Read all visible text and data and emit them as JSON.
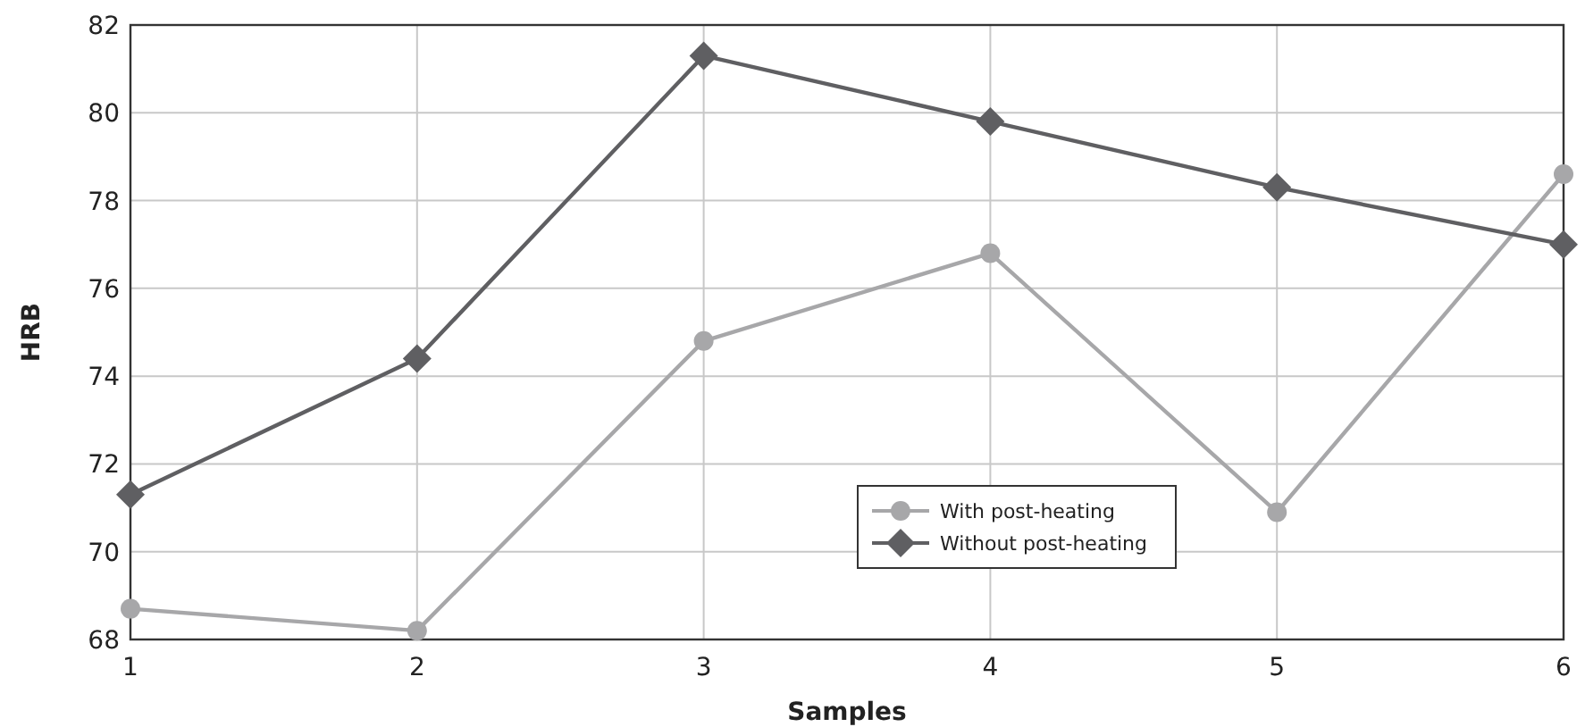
{
  "chart_data": {
    "type": "line",
    "xlabel": "Samples",
    "ylabel": "HRB",
    "x": [
      1,
      2,
      3,
      4,
      5,
      6
    ],
    "series": [
      {
        "name": "With post-heating",
        "color": "#a7a7a9",
        "marker": "circle",
        "values": [
          68.7,
          68.2,
          74.8,
          76.8,
          70.9,
          78.6
        ]
      },
      {
        "name": "Without post-heating",
        "color": "#5f5f62",
        "marker": "diamond",
        "values": [
          71.3,
          74.4,
          81.3,
          79.8,
          78.3,
          77.0
        ]
      }
    ],
    "xlim": [
      1,
      6
    ],
    "xticks": [
      1,
      2,
      3,
      4,
      5,
      6
    ],
    "ylim": [
      68,
      82
    ],
    "yticks": [
      68,
      70,
      72,
      74,
      76,
      78,
      80,
      82
    ],
    "grid": true,
    "legend": "bottom"
  }
}
